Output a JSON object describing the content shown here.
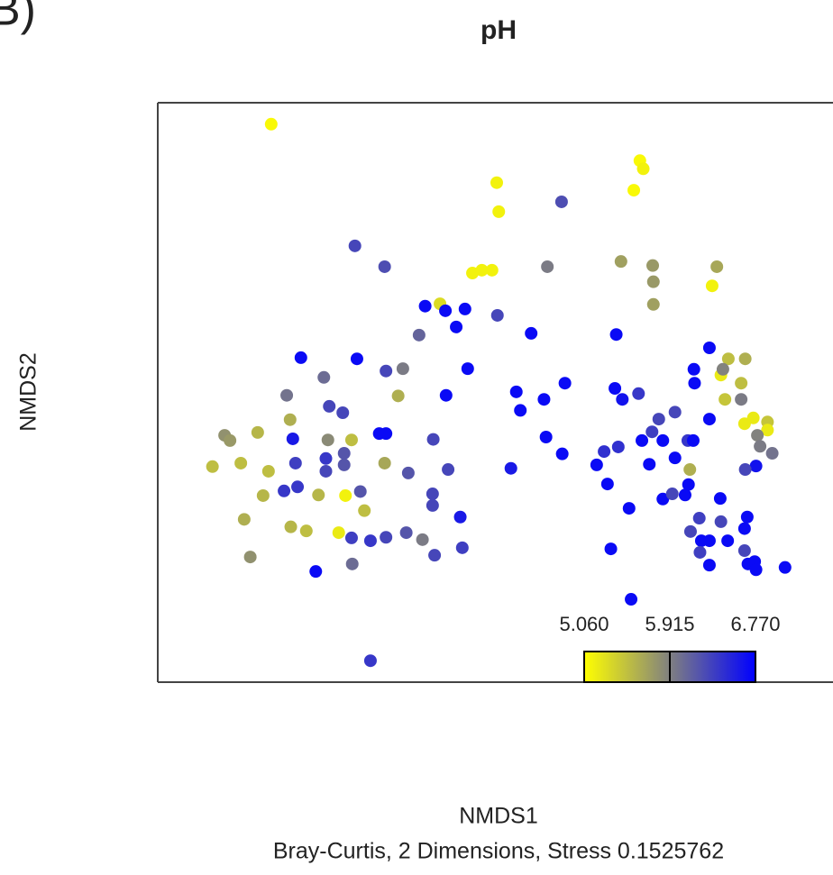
{
  "chart_data": {
    "type": "scatter",
    "panel_label": "B)",
    "title": "pH",
    "xlabel": "NMDS1",
    "ylabel": "NMDS2",
    "caption": "Bray-Curtis, 2 Dimensions, Stress 0.1525762",
    "xlim": [
      0,
      100
    ],
    "ylim": [
      0,
      100
    ],
    "x": [
      16.8,
      50.2,
      50.5,
      71.4,
      71.9,
      70.5,
      59.8,
      29.2,
      33.6,
      46.6,
      48.0,
      49.5,
      57.7,
      68.6,
      73.3,
      73.4,
      73.4,
      82.8,
      82.1,
      39.6,
      41.8,
      42.6,
      45.5,
      50.3,
      44.2,
      38.7,
      55.3,
      67.9,
      21.2,
      29.5,
      24.6,
      33.8,
      36.3,
      45.9,
      19.1,
      35.6,
      42.7,
      25.4,
      27.4,
      19.6,
      53.1,
      53.7,
      57.2,
      60.3,
      67.7,
      68.8,
      71.2,
      81.7,
      79.4,
      79.5,
      84.5,
      87.0,
      83.4,
      83.7,
      86.4,
      84.0,
      86.4,
      81.7,
      86.9,
      88.2,
      90.3,
      90.3,
      88.8,
      89.2,
      91.0,
      88.6,
      87.0,
      9.9,
      10.7,
      14.8,
      8.1,
      12.3,
      16.4,
      20.0,
      20.4,
      18.7,
      20.7,
      15.6,
      23.8,
      27.8,
      25.2,
      28.7,
      24.9,
      27.6,
      24.9,
      27.6,
      32.8,
      33.8,
      33.6,
      37.1,
      40.8,
      43.0,
      30.0,
      30.6,
      12.8,
      19.7,
      22.0,
      26.8,
      13.7,
      28.8,
      23.4,
      28.7,
      31.5,
      33.8,
      36.8,
      39.2,
      40.7,
      40.7,
      41.0,
      44.8,
      45.1,
      52.3,
      57.5,
      59.9,
      65.0,
      66.1,
      68.2,
      71.7,
      73.2,
      74.2,
      76.6,
      74.8,
      72.8,
      76.6,
      78.5,
      79.3,
      78.8,
      66.6,
      69.8,
      74.8,
      76.2,
      78.1,
      78.6,
      78.9,
      80.2,
      80.5,
      81.7,
      83.3,
      83.4,
      84.4,
      87.3,
      86.9,
      86.9,
      80.3,
      81.7,
      87.4,
      88.4,
      88.6,
      92.9,
      67.1,
      70.1,
      31.5
    ],
    "y": [
      96.3,
      86.2,
      81.2,
      90.0,
      88.6,
      84.9,
      82.9,
      75.3,
      71.7,
      70.6,
      71.1,
      71.1,
      71.7,
      72.6,
      71.9,
      69.1,
      65.2,
      71.7,
      68.4,
      64.9,
      65.3,
      64.1,
      64.4,
      63.3,
      61.3,
      59.9,
      60.2,
      60.0,
      56.0,
      55.8,
      52.6,
      53.7,
      54.1,
      54.1,
      49.5,
      49.4,
      49.5,
      47.6,
      46.5,
      45.3,
      50.1,
      46.9,
      48.8,
      51.6,
      50.7,
      48.8,
      49.8,
      57.7,
      54.0,
      51.6,
      55.8,
      55.8,
      53.0,
      54.0,
      51.6,
      48.8,
      48.8,
      45.4,
      44.6,
      45.6,
      44.9,
      43.5,
      42.6,
      40.7,
      39.5,
      37.3,
      36.7,
      42.6,
      41.7,
      43.1,
      37.2,
      37.8,
      36.4,
      42.0,
      37.8,
      33.0,
      33.7,
      32.2,
      32.3,
      32.2,
      41.8,
      41.8,
      38.6,
      39.5,
      36.4,
      37.5,
      42.9,
      42.9,
      37.8,
      36.1,
      41.9,
      36.7,
      32.9,
      29.6,
      28.1,
      26.8,
      26.1,
      25.8,
      21.6,
      20.4,
      19.1,
      24.9,
      24.4,
      25.0,
      25.8,
      24.6,
      30.5,
      32.5,
      21.9,
      28.5,
      23.2,
      36.9,
      42.3,
      39.4,
      37.5,
      39.8,
      40.6,
      41.7,
      43.2,
      45.4,
      46.6,
      41.7,
      37.6,
      38.7,
      41.7,
      41.7,
      36.7,
      34.2,
      30.0,
      31.6,
      32.5,
      32.3,
      34.1,
      26.0,
      28.3,
      24.4,
      24.4,
      31.7,
      27.7,
      24.4,
      28.5,
      26.5,
      22.7,
      22.4,
      20.2,
      20.4,
      20.8,
      19.4,
      19.8,
      23.0,
      14.3,
      3.7
    ],
    "color_values": [
      5.1,
      5.15,
      5.15,
      5.1,
      5.15,
      5.1,
      6.25,
      6.3,
      6.25,
      5.15,
      5.15,
      5.15,
      5.95,
      5.7,
      5.75,
      5.75,
      5.7,
      5.65,
      5.15,
      6.7,
      5.3,
      6.7,
      6.7,
      6.3,
      6.7,
      6.1,
      6.7,
      6.7,
      6.7,
      6.7,
      6.05,
      6.3,
      5.95,
      6.7,
      6.0,
      5.6,
      6.7,
      6.3,
      6.3,
      5.6,
      6.7,
      6.7,
      6.7,
      6.7,
      6.7,
      6.65,
      6.4,
      6.7,
      6.7,
      6.7,
      5.5,
      5.6,
      5.2,
      5.9,
      5.5,
      5.45,
      5.95,
      6.7,
      5.2,
      5.2,
      5.45,
      5.2,
      5.9,
      5.95,
      6.0,
      6.65,
      6.3,
      5.8,
      5.75,
      5.55,
      5.5,
      5.5,
      5.5,
      6.6,
      6.35,
      6.4,
      6.4,
      5.55,
      5.55,
      5.15,
      5.85,
      5.5,
      6.4,
      6.2,
      6.3,
      6.2,
      6.7,
      6.7,
      5.65,
      6.2,
      6.3,
      6.3,
      6.2,
      5.5,
      5.6,
      5.55,
      5.5,
      5.2,
      5.8,
      6.05,
      6.7,
      6.35,
      6.4,
      6.3,
      6.2,
      5.95,
      6.3,
      6.3,
      6.3,
      6.6,
      6.35,
      6.6,
      6.7,
      6.7,
      6.7,
      6.45,
      6.45,
      6.7,
      6.35,
      6.3,
      6.3,
      6.7,
      6.7,
      6.7,
      6.4,
      6.7,
      5.6,
      6.7,
      6.7,
      6.7,
      6.3,
      6.7,
      6.7,
      6.3,
      6.35,
      6.7,
      6.7,
      6.7,
      6.3,
      6.7,
      6.7,
      6.7,
      6.3,
      6.35,
      6.7,
      6.7,
      6.7,
      6.7,
      6.7,
      6.7,
      6.7,
      6.4
    ],
    "colormap": [
      "#ffff00",
      "#808080",
      "#0000ff"
    ],
    "clim": [
      5.06,
      6.77
    ],
    "colorbar_ticks": [
      {
        "value": 5.06,
        "label": "5.060"
      },
      {
        "value": 5.915,
        "label": "5.915"
      },
      {
        "value": 6.77,
        "label": "6.770"
      }
    ]
  }
}
